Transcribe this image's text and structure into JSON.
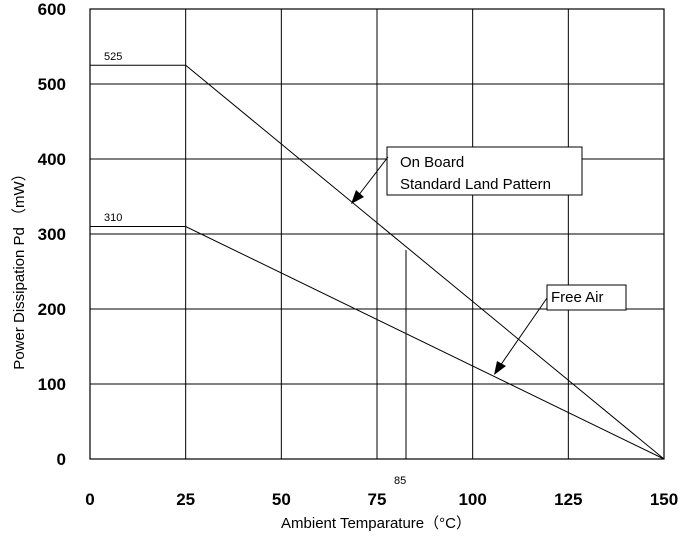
{
  "chart_data": {
    "type": "line",
    "xlabel": "Ambient Temparature（°C）",
    "ylabel": "Power Dissipation Pd （mW）",
    "xlim": [
      0,
      150
    ],
    "ylim": [
      0,
      600
    ],
    "x_ticks": [
      "0",
      "25",
      "50",
      "75",
      "100",
      "125",
      "150"
    ],
    "y_ticks": [
      "0",
      "100",
      "200",
      "300",
      "400",
      "500",
      "600"
    ],
    "grid": true,
    "series": [
      {
        "name": "On Board Standard Land Pattern",
        "x": [
          0,
          25,
          150
        ],
        "y": [
          525,
          525,
          0
        ]
      },
      {
        "name": "Free Air",
        "x": [
          0,
          25,
          150
        ],
        "y": [
          310,
          310,
          0
        ]
      }
    ],
    "labels": {
      "value_525": "525",
      "value_310": "310",
      "marker_85": "85"
    },
    "annotations": {
      "on_board_line1": "On Board",
      "on_board_line2": "Standard Land Pattern",
      "free_air": "Free Air"
    }
  }
}
